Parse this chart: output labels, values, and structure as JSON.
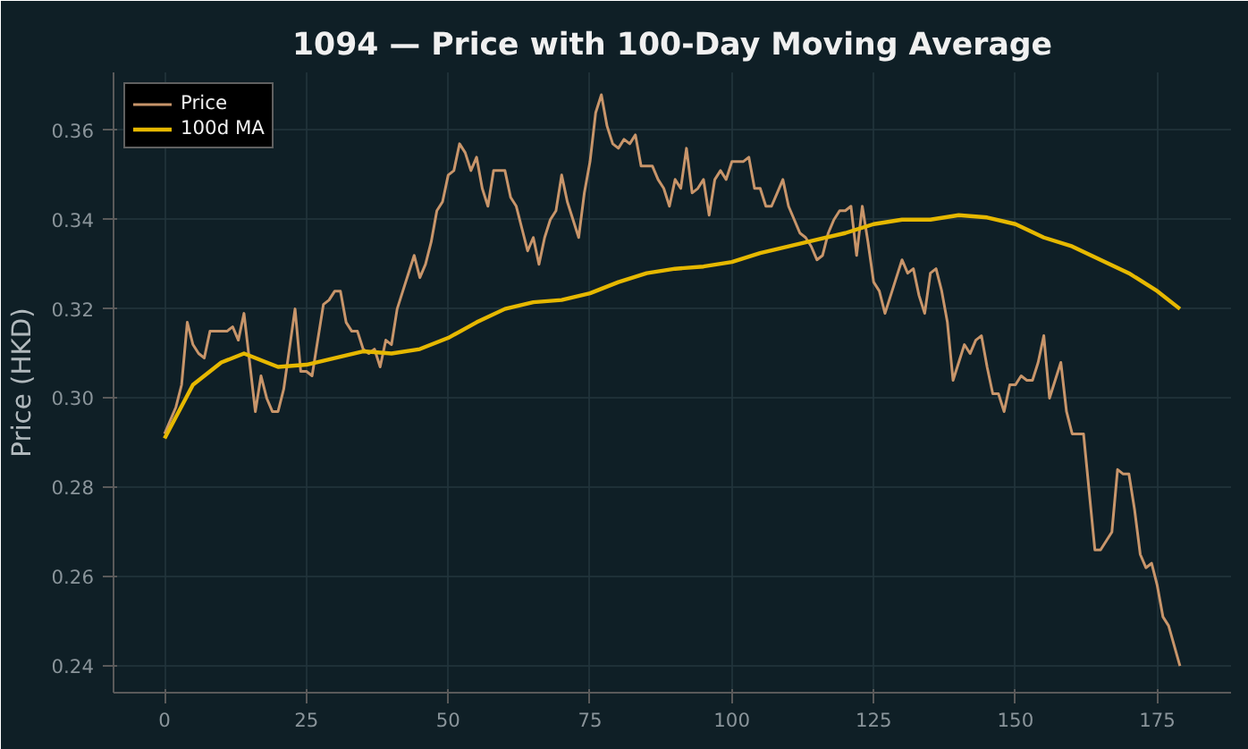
{
  "chart_data": {
    "type": "line",
    "title": "1094 — Price with 100-Day Moving Average",
    "ylabel": "Price (HKD)",
    "xlim": [
      -9,
      188
    ],
    "xticks": [
      0,
      25,
      50,
      75,
      100,
      125,
      150,
      175
    ],
    "ylim": [
      0.234,
      0.373
    ],
    "yticks": [
      {
        "value": 0.24,
        "label": "0.24"
      },
      {
        "value": 0.26,
        "label": "0.26"
      },
      {
        "value": 0.28,
        "label": "0.28"
      },
      {
        "value": 0.3,
        "label": "0.30"
      },
      {
        "value": 0.32,
        "label": "0.32"
      },
      {
        "value": 0.34,
        "label": "0.34"
      },
      {
        "value": 0.36,
        "label": "0.36"
      }
    ],
    "grid": true,
    "legend": "top left",
    "line_style": "solid",
    "series": [
      {
        "name": "Price",
        "color": "#c8956a",
        "x": [
          0,
          2,
          3,
          4,
          5,
          6,
          7,
          8,
          9,
          11,
          12,
          13,
          14,
          16,
          17,
          18,
          19,
          20,
          21,
          23,
          24,
          25,
          26,
          27,
          28,
          29,
          30,
          31,
          32,
          33,
          34,
          35,
          36,
          37,
          38,
          39,
          40,
          41,
          42,
          43,
          44,
          45,
          46,
          47,
          48,
          49,
          50,
          51,
          52,
          53,
          54,
          55,
          56,
          57,
          58,
          59,
          60,
          61,
          62,
          63,
          64,
          65,
          66,
          67,
          68,
          69,
          70,
          71,
          72,
          73,
          74,
          75,
          76,
          77,
          78,
          79,
          80,
          81,
          82,
          83,
          84,
          85,
          86,
          87,
          88,
          89,
          90,
          91,
          92,
          93,
          94,
          95,
          96,
          97,
          98,
          99,
          100,
          101,
          102,
          103,
          104,
          105,
          106,
          107,
          108,
          109,
          110,
          111,
          112,
          113,
          114,
          115,
          116,
          117,
          118,
          119,
          120,
          121,
          122,
          123,
          124,
          125,
          126,
          127,
          128,
          129,
          130,
          131,
          132,
          133,
          134,
          135,
          136,
          137,
          138,
          139,
          140,
          141,
          142,
          143,
          144,
          145,
          146,
          147,
          148,
          149,
          150,
          151,
          152,
          153,
          154,
          155,
          156,
          157,
          158,
          159,
          160,
          161,
          162,
          163,
          164,
          165,
          166,
          167,
          168,
          169,
          170,
          171,
          172,
          173,
          174,
          175,
          176,
          177,
          179
        ],
        "values": [
          0.292,
          0.298,
          0.303,
          0.317,
          0.312,
          0.31,
          0.309,
          0.315,
          0.315,
          0.315,
          0.316,
          0.313,
          0.319,
          0.297,
          0.305,
          0.3,
          0.297,
          0.297,
          0.302,
          0.32,
          0.306,
          0.306,
          0.305,
          0.313,
          0.321,
          0.322,
          0.324,
          0.324,
          0.317,
          0.315,
          0.315,
          0.311,
          0.31,
          0.311,
          0.307,
          0.313,
          0.312,
          0.32,
          0.324,
          0.328,
          0.332,
          0.327,
          0.33,
          0.335,
          0.342,
          0.344,
          0.35,
          0.351,
          0.357,
          0.355,
          0.351,
          0.354,
          0.347,
          0.343,
          0.351,
          0.351,
          0.351,
          0.345,
          0.343,
          0.338,
          0.333,
          0.336,
          0.33,
          0.336,
          0.34,
          0.342,
          0.35,
          0.344,
          0.34,
          0.336,
          0.346,
          0.353,
          0.364,
          0.368,
          0.361,
          0.357,
          0.356,
          0.358,
          0.357,
          0.359,
          0.352,
          0.352,
          0.352,
          0.349,
          0.347,
          0.343,
          0.349,
          0.347,
          0.356,
          0.346,
          0.347,
          0.349,
          0.341,
          0.349,
          0.351,
          0.349,
          0.353,
          0.353,
          0.353,
          0.354,
          0.347,
          0.347,
          0.343,
          0.343,
          0.346,
          0.349,
          0.343,
          0.34,
          0.337,
          0.336,
          0.334,
          0.331,
          0.332,
          0.337,
          0.34,
          0.342,
          0.342,
          0.343,
          0.332,
          0.343,
          0.335,
          0.326,
          0.324,
          0.319,
          0.323,
          0.327,
          0.331,
          0.328,
          0.329,
          0.323,
          0.319,
          0.328,
          0.329,
          0.324,
          0.317,
          0.304,
          0.308,
          0.312,
          0.31,
          0.313,
          0.314,
          0.307,
          0.301,
          0.301,
          0.297,
          0.303,
          0.303,
          0.305,
          0.304,
          0.304,
          0.308,
          0.314,
          0.3,
          0.304,
          0.308,
          0.297,
          0.292,
          0.292,
          0.292,
          0.279,
          0.266,
          0.266,
          0.268,
          0.27,
          0.284,
          0.283,
          0.283,
          0.275,
          0.265,
          0.262,
          0.263,
          0.258,
          0.251,
          0.249,
          0.24
        ]
      },
      {
        "name": "100d MA",
        "color": "#e6b800",
        "x": [
          0,
          5,
          10,
          14,
          20,
          25,
          30,
          35,
          40,
          45,
          50,
          55,
          60,
          65,
          70,
          75,
          80,
          85,
          90,
          95,
          100,
          105,
          110,
          115,
          120,
          125,
          130,
          135,
          140,
          145,
          150,
          155,
          160,
          165,
          170,
          175,
          179
        ],
        "values": [
          0.291,
          0.303,
          0.308,
          0.31,
          0.307,
          0.3075,
          0.309,
          0.3105,
          0.31,
          0.311,
          0.3135,
          0.317,
          0.32,
          0.3215,
          0.322,
          0.3235,
          0.326,
          0.328,
          0.329,
          0.3295,
          0.3305,
          0.3325,
          0.334,
          0.3355,
          0.337,
          0.339,
          0.34,
          0.34,
          0.341,
          0.3405,
          0.339,
          0.336,
          0.334,
          0.331,
          0.328,
          0.324,
          0.32
        ]
      }
    ]
  }
}
